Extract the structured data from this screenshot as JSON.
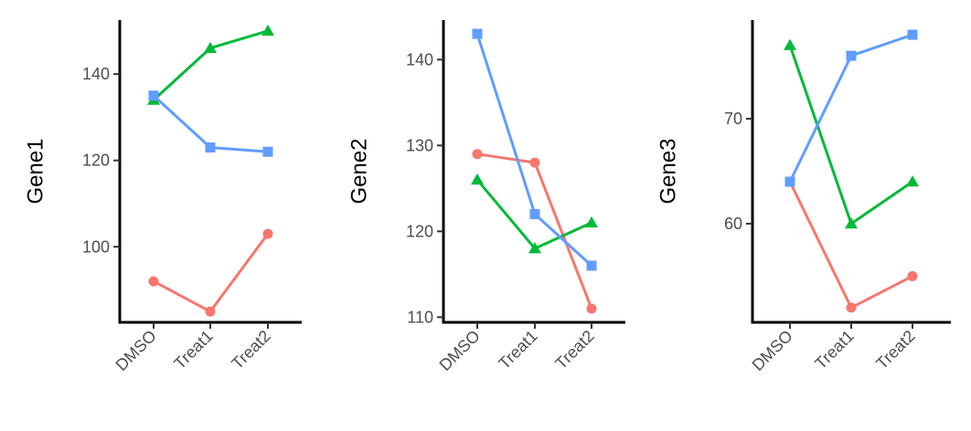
{
  "chart_data": [
    {
      "type": "line",
      "categories": [
        "DMSO",
        "Treat1",
        "Treat2"
      ],
      "ylabel": "Gene1",
      "xlabel": "",
      "ylim": [
        82.5,
        152.5
      ],
      "yticks": [
        100,
        120,
        140
      ],
      "series": [
        {
          "color": "#F8766D",
          "marker": "circle",
          "values": [
            92,
            85,
            103
          ]
        },
        {
          "color": "#00BA38",
          "marker": "triangle",
          "values": [
            134,
            146,
            150
          ]
        },
        {
          "color": "#619CFF",
          "marker": "square",
          "values": [
            135,
            123,
            122
          ]
        }
      ]
    },
    {
      "type": "line",
      "categories": [
        "DMSO",
        "Treat1",
        "Treat2"
      ],
      "ylabel": "Gene2",
      "xlabel": "",
      "ylim": [
        109.4,
        144.6
      ],
      "yticks": [
        110,
        120,
        130,
        140
      ],
      "series": [
        {
          "color": "#F8766D",
          "marker": "circle",
          "values": [
            129,
            128,
            111
          ]
        },
        {
          "color": "#00BA38",
          "marker": "triangle",
          "values": [
            126,
            118,
            121
          ]
        },
        {
          "color": "#619CFF",
          "marker": "square",
          "values": [
            143,
            122,
            116
          ]
        }
      ]
    },
    {
      "type": "line",
      "categories": [
        "DMSO",
        "Treat1",
        "Treat2"
      ],
      "ylabel": "Gene3",
      "xlabel": "",
      "ylim": [
        50.6,
        79.4
      ],
      "yticks": [
        60,
        70
      ],
      "series": [
        {
          "color": "#F8766D",
          "marker": "circle",
          "values": [
            64,
            52,
            55
          ]
        },
        {
          "color": "#00BA38",
          "marker": "triangle",
          "values": [
            77,
            60,
            64
          ]
        },
        {
          "color": "#619CFF",
          "marker": "square",
          "values": [
            64,
            76,
            78
          ]
        }
      ]
    }
  ]
}
